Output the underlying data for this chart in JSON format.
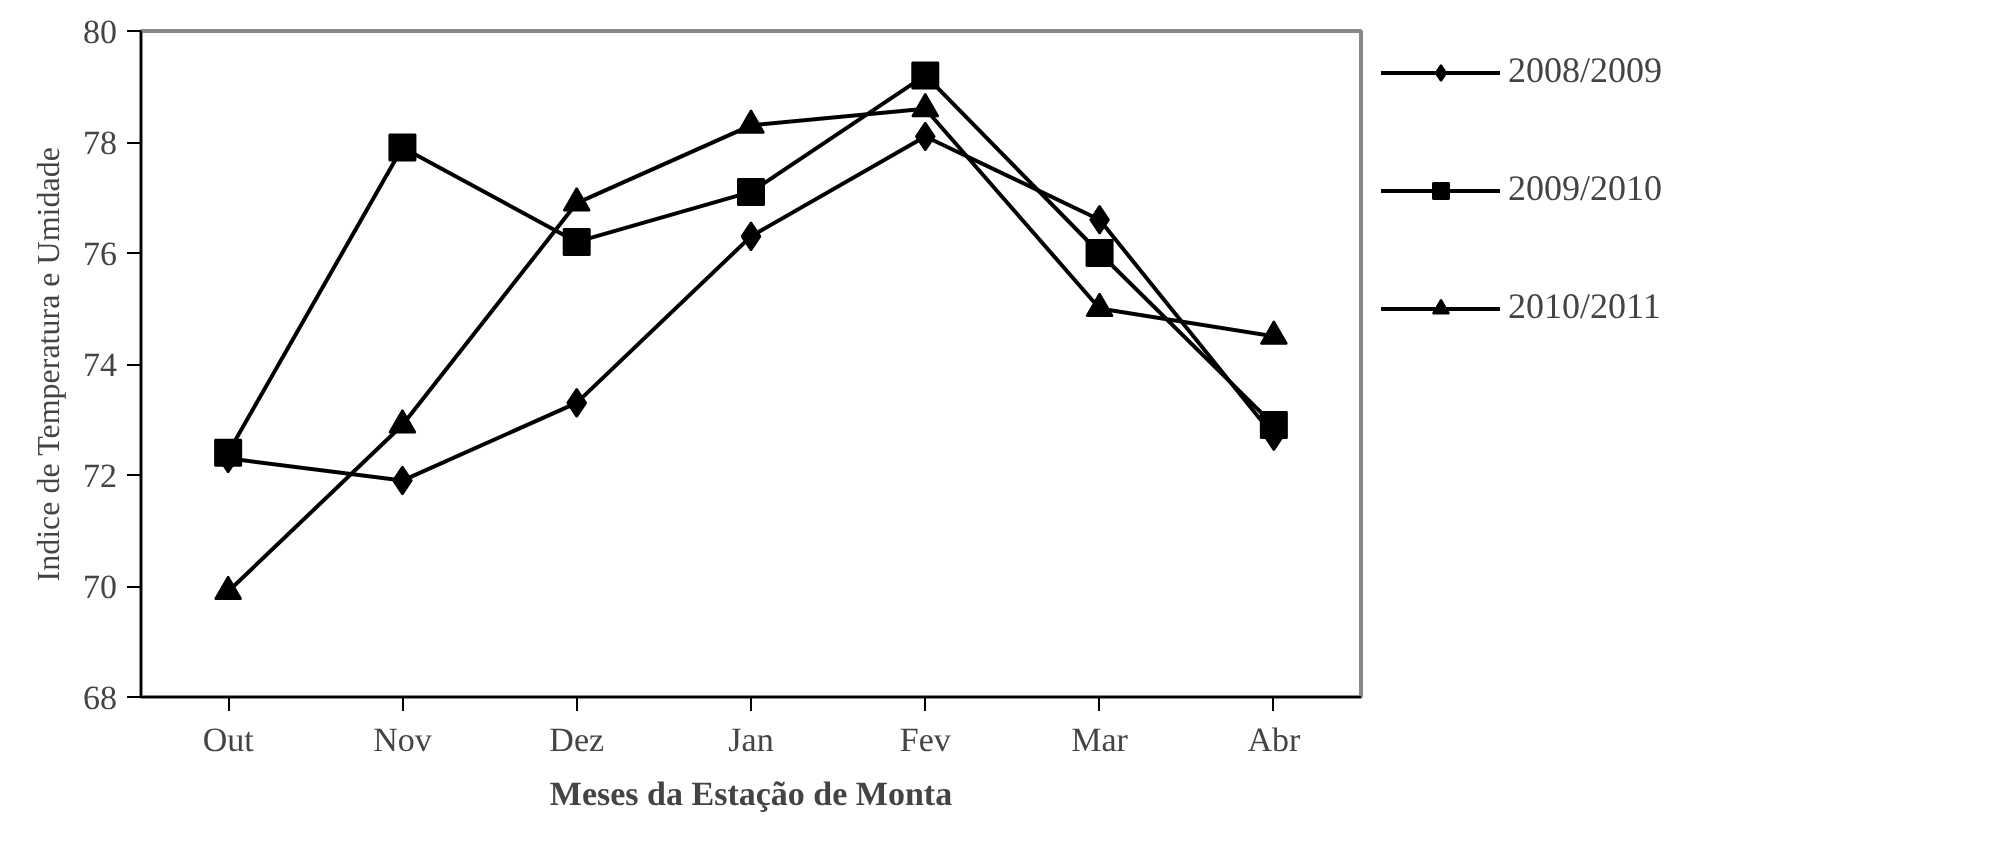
{
  "chart_data": {
    "type": "line",
    "xlabel": "Meses da Estação de Monta",
    "ylabel": "Indice de Temperatura e Umidade",
    "categories": [
      "Out",
      "Nov",
      "Dez",
      "Jan",
      "Fev",
      "Mar",
      "Abr"
    ],
    "series": [
      {
        "name": "2008/2009",
        "color": "#000000",
        "marker": "diamond",
        "values": [
          72.3,
          71.9,
          73.3,
          76.3,
          78.1,
          76.6,
          72.7
        ]
      },
      {
        "name": "2009/2010",
        "color": "#000000",
        "marker": "square",
        "values": [
          72.4,
          77.9,
          76.2,
          77.1,
          79.2,
          76.0,
          72.9
        ]
      },
      {
        "name": "2010/2011",
        "color": "#000000",
        "marker": "triangle",
        "values": [
          69.9,
          72.9,
          76.9,
          78.3,
          78.6,
          75.0,
          74.5
        ]
      }
    ],
    "ylim": [
      68,
      80
    ],
    "yticks": [
      68,
      70,
      72,
      74,
      76,
      78,
      80
    ],
    "grid": false,
    "legend": "right",
    "line_style": "solid"
  }
}
